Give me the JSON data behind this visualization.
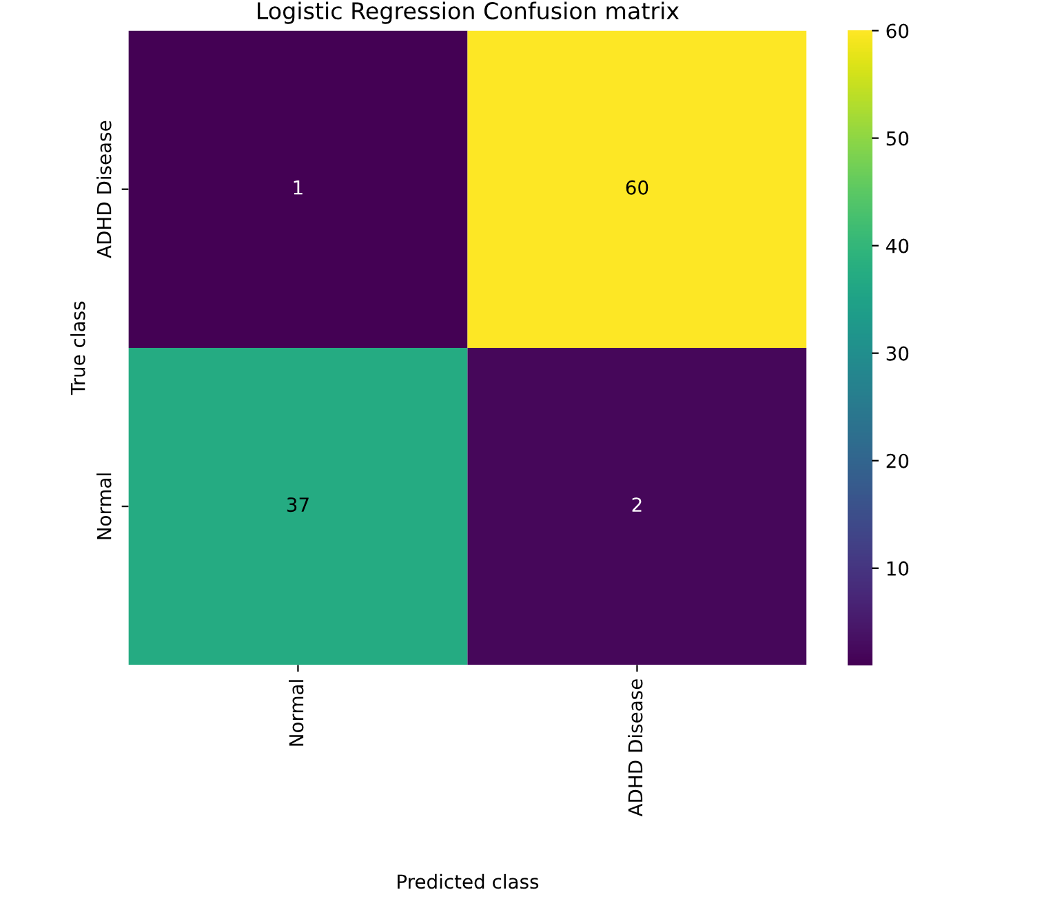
{
  "chart_data": {
    "type": "heatmap",
    "title": "Logistic Regression Confusion matrix",
    "xlabel": "Predicted class",
    "ylabel": "True class",
    "categories": [
      "Normal",
      "ADHD Disease"
    ],
    "y_categories": [
      "ADHD Disease",
      "Normal"
    ],
    "cells": [
      [
        1,
        60
      ],
      [
        37,
        2
      ]
    ],
    "data_labels": true,
    "clim": [
      1,
      60
    ],
    "cticks": [
      10,
      20,
      30,
      40,
      50,
      60
    ]
  }
}
